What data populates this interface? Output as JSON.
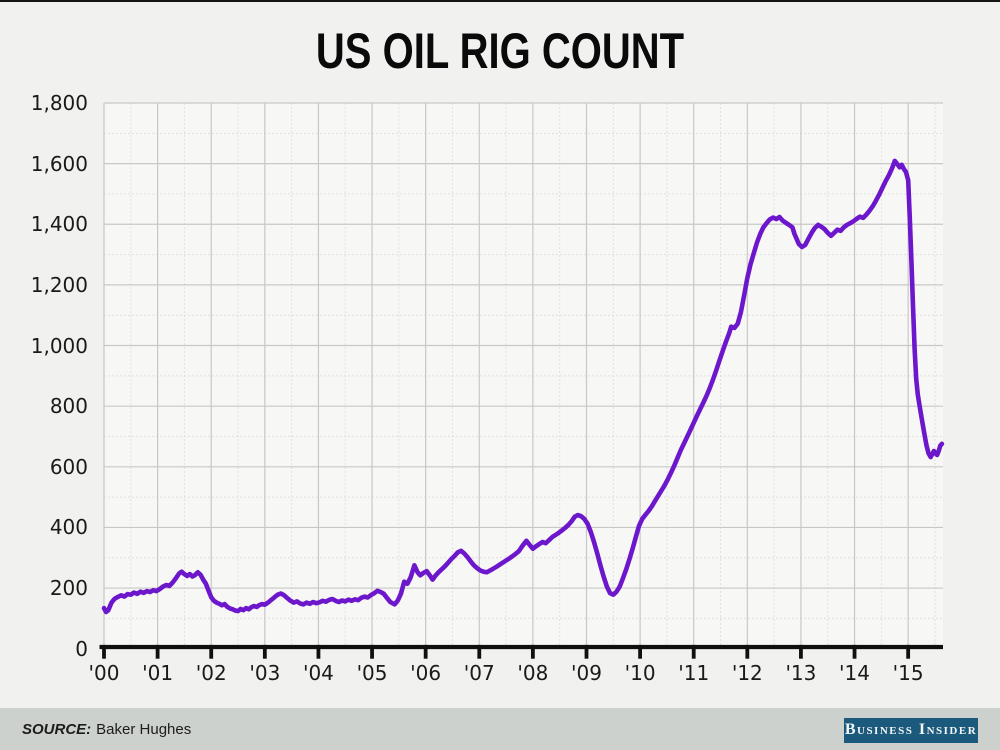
{
  "title": "US OIL RIG COUNT",
  "footer": {
    "source_label": "SOURCE:",
    "source_value": "Baker Hughes",
    "bar_color": "#cdd1cd",
    "logo_text": "Business Insider",
    "logo_bg": "#1b5a7c",
    "logo_text_color": "#f4f7f8"
  },
  "colors": {
    "page_bg": "#f1f1ef",
    "plot_bg": "#f7f7f5",
    "grid_major": "#c8c8c6",
    "grid_minor": "#e0e0de",
    "axis": "#101010",
    "text": "#1a1a1a",
    "line": "#6d17cc"
  },
  "chart_data": {
    "type": "line",
    "title": "US OIL RIG COUNT",
    "xlabel": "",
    "ylabel": "",
    "source": "Baker Hughes",
    "grid": true,
    "legend": "none",
    "xlim": [
      2000,
      2015.65
    ],
    "ylim": [
      0,
      1800
    ],
    "x_tick_years": [
      2000,
      2001,
      2002,
      2003,
      2004,
      2005,
      2006,
      2007,
      2008,
      2009,
      2010,
      2011,
      2012,
      2013,
      2014,
      2015
    ],
    "x_tick_labels": [
      "'00",
      "'01",
      "'02",
      "'03",
      "'04",
      "'05",
      "'06",
      "'07",
      "'08",
      "'09",
      "'10",
      "'11",
      "'12",
      "'13",
      "'14",
      "'15"
    ],
    "y_tick_values": [
      0,
      200,
      400,
      600,
      800,
      1000,
      1200,
      1400,
      1600,
      1800
    ],
    "y_tick_labels": [
      "0",
      "200",
      "400",
      "600",
      "800",
      "1,000",
      "1,200",
      "1,400",
      "1,600",
      "1,800"
    ],
    "series": [
      {
        "name": "US oil rig count",
        "color": "#6d17cc",
        "points": [
          [
            2000.0,
            134
          ],
          [
            2000.04,
            121
          ],
          [
            2000.08,
            127
          ],
          [
            2000.14,
            152
          ],
          [
            2000.2,
            165
          ],
          [
            2000.26,
            171
          ],
          [
            2000.32,
            176
          ],
          [
            2000.38,
            172
          ],
          [
            2000.44,
            180
          ],
          [
            2000.5,
            178
          ],
          [
            2000.56,
            185
          ],
          [
            2000.62,
            181
          ],
          [
            2000.68,
            188
          ],
          [
            2000.74,
            184
          ],
          [
            2000.8,
            190
          ],
          [
            2000.86,
            187
          ],
          [
            2000.92,
            193
          ],
          [
            2000.98,
            190
          ],
          [
            2001.04,
            197
          ],
          [
            2001.1,
            205
          ],
          [
            2001.16,
            210
          ],
          [
            2001.22,
            207
          ],
          [
            2001.28,
            218
          ],
          [
            2001.34,
            232
          ],
          [
            2001.4,
            248
          ],
          [
            2001.45,
            254
          ],
          [
            2001.5,
            246
          ],
          [
            2001.55,
            240
          ],
          [
            2001.6,
            246
          ],
          [
            2001.65,
            238
          ],
          [
            2001.7,
            243
          ],
          [
            2001.75,
            252
          ],
          [
            2001.8,
            244
          ],
          [
            2001.85,
            228
          ],
          [
            2001.9,
            214
          ],
          [
            2001.95,
            192
          ],
          [
            2002.0,
            170
          ],
          [
            2002.05,
            158
          ],
          [
            2002.1,
            152
          ],
          [
            2002.15,
            148
          ],
          [
            2002.2,
            143
          ],
          [
            2002.25,
            147
          ],
          [
            2002.3,
            138
          ],
          [
            2002.35,
            133
          ],
          [
            2002.4,
            130
          ],
          [
            2002.45,
            126
          ],
          [
            2002.5,
            124
          ],
          [
            2002.55,
            131
          ],
          [
            2002.6,
            127
          ],
          [
            2002.65,
            134
          ],
          [
            2002.7,
            130
          ],
          [
            2002.75,
            137
          ],
          [
            2002.8,
            141
          ],
          [
            2002.85,
            138
          ],
          [
            2002.9,
            144
          ],
          [
            2002.95,
            147
          ],
          [
            2003.0,
            145
          ],
          [
            2003.06,
            152
          ],
          [
            2003.12,
            161
          ],
          [
            2003.18,
            170
          ],
          [
            2003.24,
            178
          ],
          [
            2003.3,
            182
          ],
          [
            2003.36,
            176
          ],
          [
            2003.42,
            167
          ],
          [
            2003.48,
            158
          ],
          [
            2003.54,
            152
          ],
          [
            2003.6,
            156
          ],
          [
            2003.66,
            149
          ],
          [
            2003.72,
            146
          ],
          [
            2003.78,
            152
          ],
          [
            2003.84,
            148
          ],
          [
            2003.9,
            154
          ],
          [
            2003.96,
            150
          ],
          [
            2004.02,
            153
          ],
          [
            2004.08,
            158
          ],
          [
            2004.14,
            155
          ],
          [
            2004.2,
            161
          ],
          [
            2004.26,
            164
          ],
          [
            2004.32,
            158
          ],
          [
            2004.38,
            154
          ],
          [
            2004.44,
            159
          ],
          [
            2004.5,
            156
          ],
          [
            2004.56,
            162
          ],
          [
            2004.62,
            158
          ],
          [
            2004.68,
            163
          ],
          [
            2004.74,
            160
          ],
          [
            2004.8,
            168
          ],
          [
            2004.86,
            172
          ],
          [
            2004.92,
            169
          ],
          [
            2004.98,
            177
          ],
          [
            2005.04,
            183
          ],
          [
            2005.1,
            191
          ],
          [
            2005.16,
            187
          ],
          [
            2005.22,
            181
          ],
          [
            2005.28,
            167
          ],
          [
            2005.34,
            154
          ],
          [
            2005.42,
            146
          ],
          [
            2005.48,
            159
          ],
          [
            2005.54,
            182
          ],
          [
            2005.6,
            221
          ],
          [
            2005.66,
            214
          ],
          [
            2005.72,
            236
          ],
          [
            2005.79,
            275
          ],
          [
            2005.85,
            252
          ],
          [
            2005.9,
            242
          ],
          [
            2005.96,
            250
          ],
          [
            2006.02,
            256
          ],
          [
            2006.08,
            241
          ],
          [
            2006.13,
            228
          ],
          [
            2006.18,
            240
          ],
          [
            2006.24,
            252
          ],
          [
            2006.3,
            262
          ],
          [
            2006.36,
            272
          ],
          [
            2006.42,
            284
          ],
          [
            2006.48,
            296
          ],
          [
            2006.54,
            306
          ],
          [
            2006.6,
            318
          ],
          [
            2006.66,
            323
          ],
          [
            2006.72,
            314
          ],
          [
            2006.78,
            302
          ],
          [
            2006.84,
            288
          ],
          [
            2006.9,
            275
          ],
          [
            2006.96,
            266
          ],
          [
            2007.02,
            258
          ],
          [
            2007.08,
            254
          ],
          [
            2007.14,
            252
          ],
          [
            2007.2,
            258
          ],
          [
            2007.26,
            264
          ],
          [
            2007.32,
            270
          ],
          [
            2007.38,
            277
          ],
          [
            2007.44,
            284
          ],
          [
            2007.5,
            291
          ],
          [
            2007.56,
            298
          ],
          [
            2007.62,
            305
          ],
          [
            2007.68,
            313
          ],
          [
            2007.74,
            322
          ],
          [
            2007.8,
            338
          ],
          [
            2007.88,
            356
          ],
          [
            2007.94,
            342
          ],
          [
            2008.0,
            330
          ],
          [
            2008.06,
            338
          ],
          [
            2008.12,
            345
          ],
          [
            2008.18,
            352
          ],
          [
            2008.24,
            348
          ],
          [
            2008.3,
            358
          ],
          [
            2008.36,
            368
          ],
          [
            2008.42,
            375
          ],
          [
            2008.48,
            382
          ],
          [
            2008.54,
            390
          ],
          [
            2008.6,
            398
          ],
          [
            2008.66,
            408
          ],
          [
            2008.72,
            420
          ],
          [
            2008.78,
            435
          ],
          [
            2008.84,
            441
          ],
          [
            2008.9,
            437
          ],
          [
            2008.96,
            428
          ],
          [
            2009.02,
            412
          ],
          [
            2009.08,
            385
          ],
          [
            2009.14,
            352
          ],
          [
            2009.2,
            315
          ],
          [
            2009.26,
            275
          ],
          [
            2009.32,
            238
          ],
          [
            2009.38,
            205
          ],
          [
            2009.44,
            183
          ],
          [
            2009.5,
            178
          ],
          [
            2009.56,
            188
          ],
          [
            2009.62,
            205
          ],
          [
            2009.68,
            232
          ],
          [
            2009.74,
            262
          ],
          [
            2009.8,
            295
          ],
          [
            2009.86,
            330
          ],
          [
            2009.92,
            368
          ],
          [
            2009.98,
            405
          ],
          [
            2010.04,
            428
          ],
          [
            2010.1,
            442
          ],
          [
            2010.16,
            455
          ],
          [
            2010.22,
            470
          ],
          [
            2010.28,
            488
          ],
          [
            2010.34,
            505
          ],
          [
            2010.4,
            522
          ],
          [
            2010.46,
            540
          ],
          [
            2010.52,
            560
          ],
          [
            2010.58,
            582
          ],
          [
            2010.64,
            605
          ],
          [
            2010.7,
            630
          ],
          [
            2010.76,
            655
          ],
          [
            2010.82,
            678
          ],
          [
            2010.88,
            700
          ],
          [
            2010.94,
            722
          ],
          [
            2011.0,
            745
          ],
          [
            2011.06,
            768
          ],
          [
            2011.12,
            790
          ],
          [
            2011.18,
            812
          ],
          [
            2011.24,
            835
          ],
          [
            2011.3,
            860
          ],
          [
            2011.36,
            888
          ],
          [
            2011.42,
            918
          ],
          [
            2011.48,
            950
          ],
          [
            2011.54,
            982
          ],
          [
            2011.6,
            1012
          ],
          [
            2011.66,
            1040
          ],
          [
            2011.7,
            1062
          ],
          [
            2011.76,
            1058
          ],
          [
            2011.82,
            1072
          ],
          [
            2011.88,
            1110
          ],
          [
            2011.94,
            1165
          ],
          [
            2012.0,
            1222
          ],
          [
            2012.06,
            1268
          ],
          [
            2012.12,
            1305
          ],
          [
            2012.18,
            1340
          ],
          [
            2012.24,
            1368
          ],
          [
            2012.3,
            1390
          ],
          [
            2012.36,
            1404
          ],
          [
            2012.42,
            1416
          ],
          [
            2012.48,
            1422
          ],
          [
            2012.54,
            1417
          ],
          [
            2012.6,
            1424
          ],
          [
            2012.66,
            1412
          ],
          [
            2012.72,
            1405
          ],
          [
            2012.78,
            1398
          ],
          [
            2012.84,
            1390
          ],
          [
            2012.88,
            1368
          ],
          [
            2012.92,
            1352
          ],
          [
            2012.96,
            1335
          ],
          [
            2013.02,
            1325
          ],
          [
            2013.08,
            1332
          ],
          [
            2013.14,
            1352
          ],
          [
            2013.2,
            1372
          ],
          [
            2013.26,
            1388
          ],
          [
            2013.32,
            1398
          ],
          [
            2013.38,
            1392
          ],
          [
            2013.44,
            1384
          ],
          [
            2013.5,
            1372
          ],
          [
            2013.56,
            1362
          ],
          [
            2013.62,
            1372
          ],
          [
            2013.68,
            1382
          ],
          [
            2013.74,
            1378
          ],
          [
            2013.8,
            1390
          ],
          [
            2013.86,
            1398
          ],
          [
            2013.92,
            1404
          ],
          [
            2013.98,
            1410
          ],
          [
            2014.04,
            1418
          ],
          [
            2014.1,
            1425
          ],
          [
            2014.16,
            1421
          ],
          [
            2014.22,
            1432
          ],
          [
            2014.28,
            1445
          ],
          [
            2014.34,
            1460
          ],
          [
            2014.4,
            1478
          ],
          [
            2014.46,
            1498
          ],
          [
            2014.52,
            1520
          ],
          [
            2014.58,
            1542
          ],
          [
            2014.64,
            1562
          ],
          [
            2014.7,
            1585
          ],
          [
            2014.75,
            1609
          ],
          [
            2014.8,
            1598
          ],
          [
            2014.84,
            1588
          ],
          [
            2014.88,
            1596
          ],
          [
            2014.92,
            1582
          ],
          [
            2014.96,
            1572
          ],
          [
            2015.0,
            1545
          ],
          [
            2015.03,
            1420
          ],
          [
            2015.06,
            1280
          ],
          [
            2015.09,
            1130
          ],
          [
            2015.12,
            990
          ],
          [
            2015.15,
            890
          ],
          [
            2015.18,
            838
          ],
          [
            2015.22,
            795
          ],
          [
            2015.26,
            752
          ],
          [
            2015.3,
            712
          ],
          [
            2015.34,
            672
          ],
          [
            2015.38,
            645
          ],
          [
            2015.42,
            632
          ],
          [
            2015.45,
            642
          ],
          [
            2015.48,
            652
          ],
          [
            2015.51,
            644
          ],
          [
            2015.54,
            639
          ],
          [
            2015.57,
            652
          ],
          [
            2015.6,
            670
          ],
          [
            2015.63,
            676
          ]
        ]
      }
    ]
  }
}
